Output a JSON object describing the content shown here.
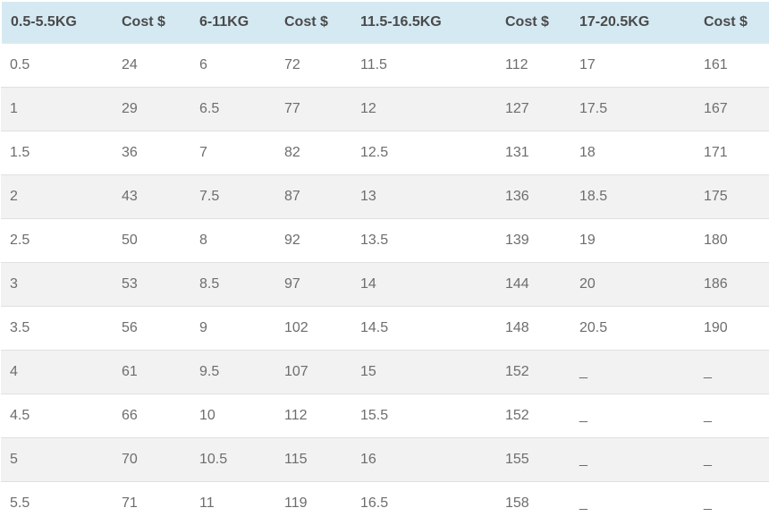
{
  "table": {
    "columns": [
      "0.5-5.5KG",
      "Cost $",
      "6-11KG",
      "Cost $",
      "11.5-16.5KG",
      "Cost $",
      "17-20.5KG",
      "Cost $"
    ],
    "rows": [
      [
        "0.5",
        "24",
        "6",
        "72",
        "11.5",
        "112",
        "17",
        "161"
      ],
      [
        "1",
        "29",
        "6.5",
        "77",
        "12",
        "127",
        "17.5",
        "167"
      ],
      [
        "1.5",
        "36",
        "7",
        "82",
        "12.5",
        "131",
        "18",
        "171"
      ],
      [
        "2",
        "43",
        "7.5",
        "87",
        "13",
        "136",
        "18.5",
        "175"
      ],
      [
        "2.5",
        "50",
        "8",
        "92",
        "13.5",
        "139",
        "19",
        "180"
      ],
      [
        "3",
        "53",
        "8.5",
        "97",
        "14",
        "144",
        "20",
        "186"
      ],
      [
        "3.5",
        "56",
        "9",
        "102",
        "14.5",
        "148",
        "20.5",
        "190"
      ],
      [
        "4",
        "61",
        "9.5",
        "107",
        "15",
        "152",
        "_",
        "_"
      ],
      [
        "4.5",
        "66",
        "10",
        "112",
        "15.5",
        "152",
        "_",
        "_"
      ],
      [
        "5",
        "70",
        "10.5",
        "115",
        "16",
        "155",
        "_",
        "_"
      ],
      [
        "5.5",
        "71",
        "11",
        "119",
        "16.5",
        "158",
        "_",
        "_"
      ]
    ]
  },
  "colors": {
    "header_bg": "#d5e9f2",
    "header_text": "#4a4a4a",
    "row_bg": "#ffffff",
    "row_alt_bg": "#f2f2f2",
    "row_text": "#6d6d6d",
    "row_border": "#e0e0e0"
  }
}
